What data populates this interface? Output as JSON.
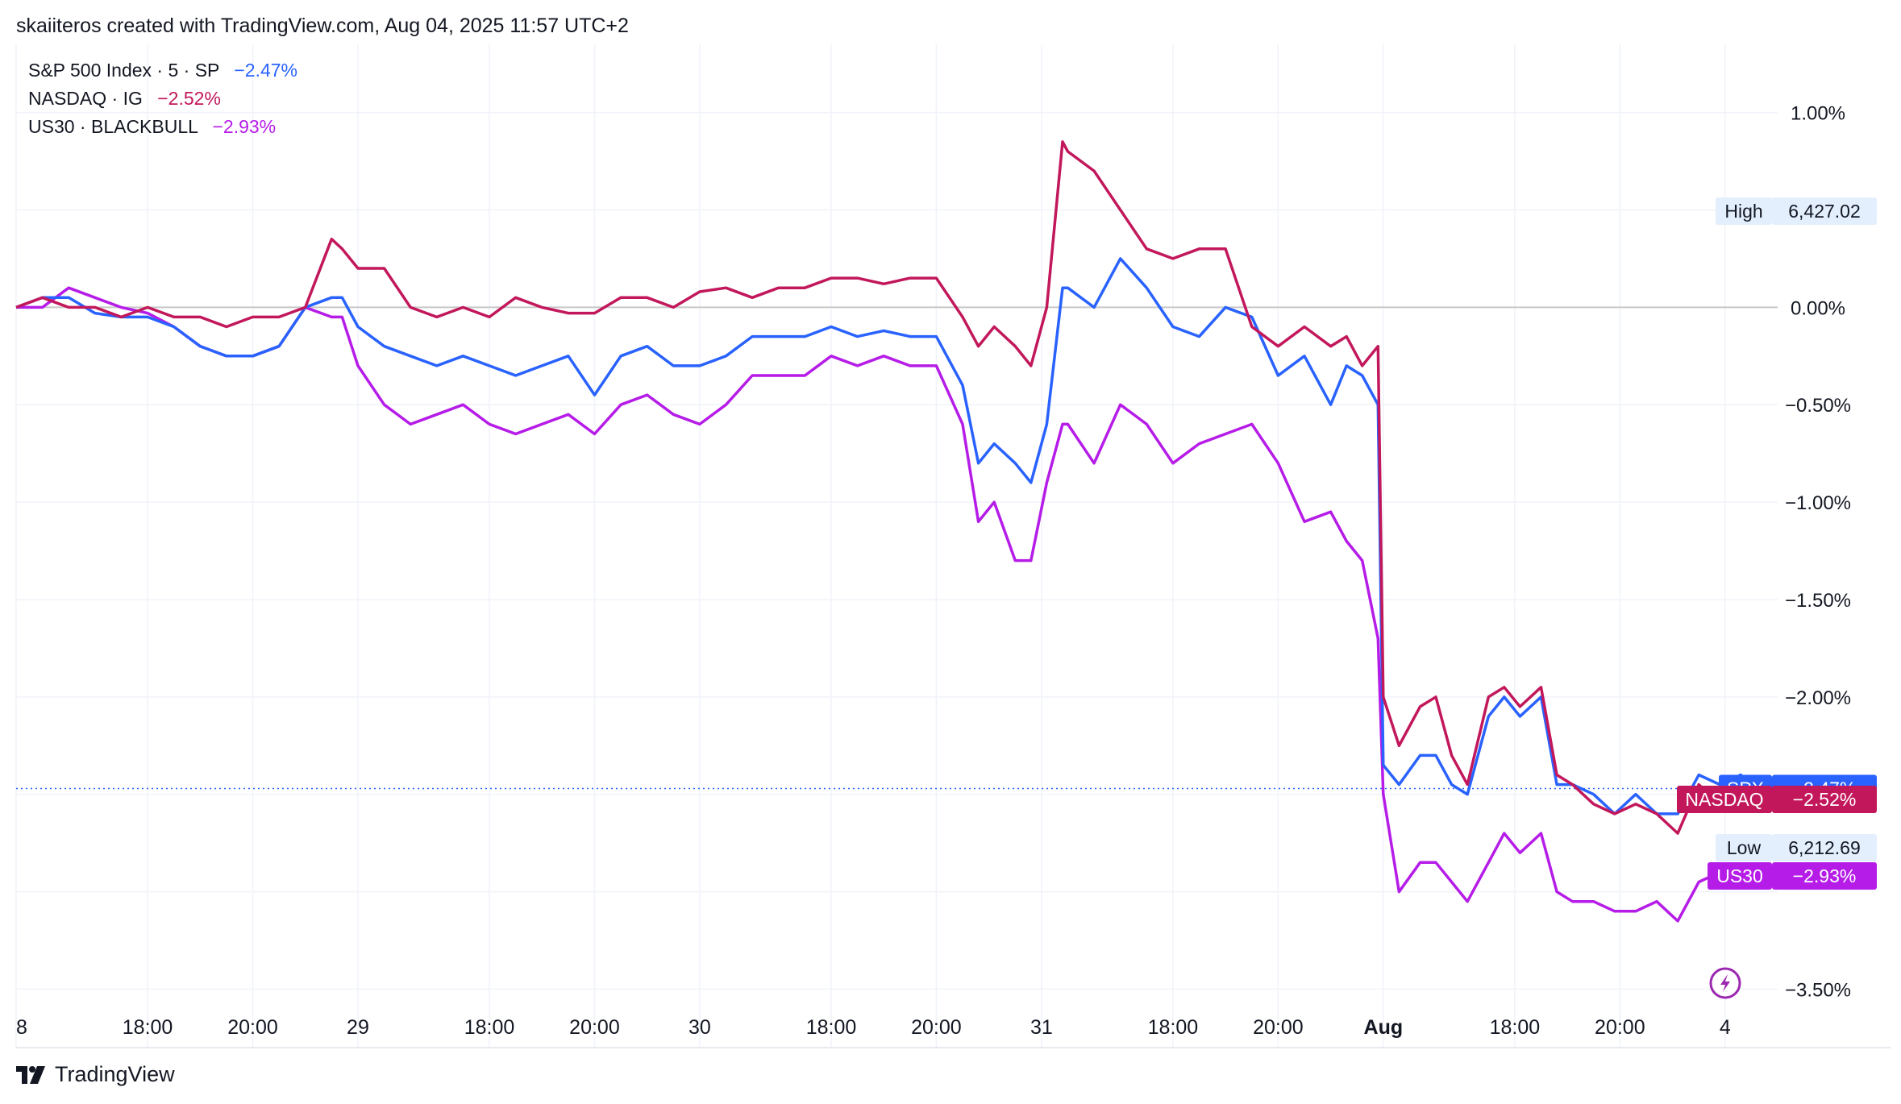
{
  "header": {
    "text": "skaiiteros created with TradingView.com, Aug 04, 2025 11:57 UTC+2"
  },
  "footer": {
    "brand": "TradingView"
  },
  "legend": [
    {
      "name": "S&P 500 Index · 5 · SP",
      "pct": "−2.47%",
      "color": "#2962ff"
    },
    {
      "name": "NASDAQ · IG",
      "pct": "−2.52%",
      "color": "#c2185b"
    },
    {
      "name": "US30 · BLACKBULL",
      "pct": "−2.93%",
      "color": "#b61ce8"
    }
  ],
  "markers": {
    "high": {
      "label": "High",
      "value": "6,427.02"
    },
    "low": {
      "label": "Low",
      "value": "6,212.69"
    },
    "spx": {
      "label": "SPX",
      "value": "−2.47%",
      "color": "#2962ff"
    },
    "nasdaq": {
      "label": "NASDAQ",
      "value": "−2.52%",
      "color": "#c2185b"
    },
    "us30": {
      "label": "US30",
      "value": "−2.93%",
      "color": "#b61ce8"
    }
  },
  "chart_data": {
    "type": "line",
    "y_unit": "%",
    "y_ticks": [
      "1.00%",
      "0.00%",
      "−0.50%",
      "−1.00%",
      "−1.50%",
      "−2.00%",
      "−3.50%"
    ],
    "y_tick_values": [
      1.0,
      0.0,
      -0.5,
      -1.0,
      -1.5,
      -2.0,
      -3.5
    ],
    "ylim": [
      -3.8,
      1.35
    ],
    "x_ticks": [
      "8",
      "18:00",
      "20:00",
      "29",
      "18:00",
      "20:00",
      "30",
      "18:00",
      "20:00",
      "31",
      "18:00",
      "20:00",
      "Aug",
      "18:00",
      "20:00",
      "4"
    ],
    "x_tick_bold": [
      false,
      false,
      false,
      false,
      false,
      false,
      false,
      false,
      false,
      false,
      false,
      false,
      true,
      false,
      false,
      false
    ],
    "x_tick_positions": [
      0,
      2.5,
      4.5,
      6.5,
      9,
      11,
      13,
      15.5,
      17.5,
      19.5,
      22,
      24,
      26,
      28.5,
      30.5,
      32.5
    ],
    "xlim": [
      0,
      33.5
    ],
    "grid": true,
    "zero_line": true,
    "legend_position": "top-left",
    "series": [
      {
        "name": "SPX",
        "color": "#2962ff",
        "x": [
          0,
          0.5,
          1,
          1.5,
          2,
          2.5,
          3,
          3.5,
          4,
          4.5,
          5,
          5.5,
          6,
          6.2,
          6.5,
          7,
          7.5,
          8,
          8.5,
          9,
          9.5,
          10,
          10.5,
          11,
          11.5,
          12,
          12.5,
          13,
          13.5,
          14,
          14.5,
          15,
          15.5,
          16,
          16.5,
          17,
          17.5,
          18,
          18.3,
          18.6,
          19,
          19.3,
          19.6,
          19.9,
          20,
          20.5,
          21,
          21.5,
          22,
          22.5,
          23,
          23.5,
          24,
          24.5,
          25,
          25.3,
          25.6,
          25.9,
          26,
          26.3,
          26.7,
          27,
          27.3,
          27.6,
          28,
          28.3,
          28.6,
          29,
          29.3,
          29.6,
          30,
          30.4,
          30.8,
          31.2,
          31.6,
          32,
          32.4,
          32.8,
          33
        ],
        "y": [
          0.0,
          0.05,
          0.05,
          -0.03,
          -0.05,
          -0.05,
          -0.1,
          -0.2,
          -0.25,
          -0.25,
          -0.2,
          0.0,
          0.05,
          0.05,
          -0.1,
          -0.2,
          -0.25,
          -0.3,
          -0.25,
          -0.3,
          -0.35,
          -0.3,
          -0.25,
          -0.45,
          -0.25,
          -0.2,
          -0.3,
          -0.3,
          -0.25,
          -0.15,
          -0.15,
          -0.15,
          -0.1,
          -0.15,
          -0.12,
          -0.15,
          -0.15,
          -0.4,
          -0.8,
          -0.7,
          -0.8,
          -0.9,
          -0.6,
          0.1,
          0.1,
          0.0,
          0.25,
          0.1,
          -0.1,
          -0.15,
          0.0,
          -0.05,
          -0.35,
          -0.25,
          -0.5,
          -0.3,
          -0.35,
          -0.5,
          -2.35,
          -2.45,
          -2.3,
          -2.3,
          -2.45,
          -2.5,
          -2.1,
          -2.0,
          -2.1,
          -2.0,
          -2.45,
          -2.45,
          -2.5,
          -2.6,
          -2.5,
          -2.6,
          -2.6,
          -2.4,
          -2.45,
          -2.4,
          -2.47
        ]
      },
      {
        "name": "NASDAQ",
        "color": "#c2185b",
        "x": [
          0,
          0.5,
          1,
          1.5,
          2,
          2.5,
          3,
          3.5,
          4,
          4.5,
          5,
          5.5,
          6,
          6.2,
          6.5,
          7,
          7.5,
          8,
          8.5,
          9,
          9.5,
          10,
          10.5,
          11,
          11.5,
          12,
          12.5,
          13,
          13.5,
          14,
          14.5,
          15,
          15.5,
          16,
          16.5,
          17,
          17.5,
          18,
          18.3,
          18.6,
          19,
          19.3,
          19.6,
          19.9,
          20,
          20.5,
          21,
          21.5,
          22,
          22.5,
          23,
          23.5,
          24,
          24.5,
          25,
          25.3,
          25.6,
          25.9,
          26,
          26.3,
          26.7,
          27,
          27.3,
          27.6,
          28,
          28.3,
          28.6,
          29,
          29.3,
          29.6,
          30,
          30.4,
          30.8,
          31.2,
          31.6,
          32,
          32.4,
          32.8,
          33
        ],
        "y": [
          0.0,
          0.05,
          0.0,
          0.0,
          -0.05,
          0.0,
          -0.05,
          -0.05,
          -0.1,
          -0.05,
          -0.05,
          0.0,
          0.35,
          0.3,
          0.2,
          0.2,
          0.0,
          -0.05,
          0.0,
          -0.05,
          0.05,
          0.0,
          -0.03,
          -0.03,
          0.05,
          0.05,
          0.0,
          0.08,
          0.1,
          0.05,
          0.1,
          0.1,
          0.15,
          0.15,
          0.12,
          0.15,
          0.15,
          -0.05,
          -0.2,
          -0.1,
          -0.2,
          -0.3,
          0.0,
          0.85,
          0.8,
          0.7,
          0.5,
          0.3,
          0.25,
          0.3,
          0.3,
          -0.1,
          -0.2,
          -0.1,
          -0.2,
          -0.15,
          -0.3,
          -0.2,
          -2.0,
          -2.25,
          -2.05,
          -2.0,
          -2.3,
          -2.45,
          -2.0,
          -1.95,
          -2.05,
          -1.95,
          -2.4,
          -2.45,
          -2.55,
          -2.6,
          -2.55,
          -2.6,
          -2.7,
          -2.45,
          -2.55,
          -2.45,
          -2.52
        ]
      },
      {
        "name": "US30",
        "color": "#b61ce8",
        "x": [
          0,
          0.5,
          1,
          1.5,
          2,
          2.5,
          3,
          3.5,
          4,
          4.5,
          5,
          5.5,
          6,
          6.2,
          6.5,
          7,
          7.5,
          8,
          8.5,
          9,
          9.5,
          10,
          10.5,
          11,
          11.5,
          12,
          12.5,
          13,
          13.5,
          14,
          14.5,
          15,
          15.5,
          16,
          16.5,
          17,
          17.5,
          18,
          18.3,
          18.6,
          19,
          19.3,
          19.6,
          19.9,
          20,
          20.5,
          21,
          21.5,
          22,
          22.5,
          23,
          23.5,
          24,
          24.5,
          25,
          25.3,
          25.6,
          25.9,
          26,
          26.3,
          26.7,
          27,
          27.3,
          27.6,
          28,
          28.3,
          28.6,
          29,
          29.3,
          29.6,
          30,
          30.4,
          30.8,
          31.2,
          31.6,
          32,
          32.4,
          32.8,
          33
        ],
        "y": [
          0.0,
          0.0,
          0.1,
          0.05,
          0.0,
          -0.03,
          -0.1,
          -0.2,
          -0.25,
          -0.25,
          -0.2,
          0.0,
          -0.05,
          -0.05,
          -0.3,
          -0.5,
          -0.6,
          -0.55,
          -0.5,
          -0.6,
          -0.65,
          -0.6,
          -0.55,
          -0.65,
          -0.5,
          -0.45,
          -0.55,
          -0.6,
          -0.5,
          -0.35,
          -0.35,
          -0.35,
          -0.25,
          -0.3,
          -0.25,
          -0.3,
          -0.3,
          -0.6,
          -1.1,
          -1.0,
          -1.3,
          -1.3,
          -0.9,
          -0.6,
          -0.6,
          -0.8,
          -0.5,
          -0.6,
          -0.8,
          -0.7,
          -0.65,
          -0.6,
          -0.8,
          -1.1,
          -1.05,
          -1.2,
          -1.3,
          -1.7,
          -2.5,
          -3.0,
          -2.85,
          -2.85,
          -2.95,
          -3.05,
          -2.85,
          -2.7,
          -2.8,
          -2.7,
          -3.0,
          -3.05,
          -3.05,
          -3.1,
          -3.1,
          -3.05,
          -3.15,
          -2.95,
          -2.9,
          -2.9,
          -2.93
        ]
      }
    ]
  }
}
